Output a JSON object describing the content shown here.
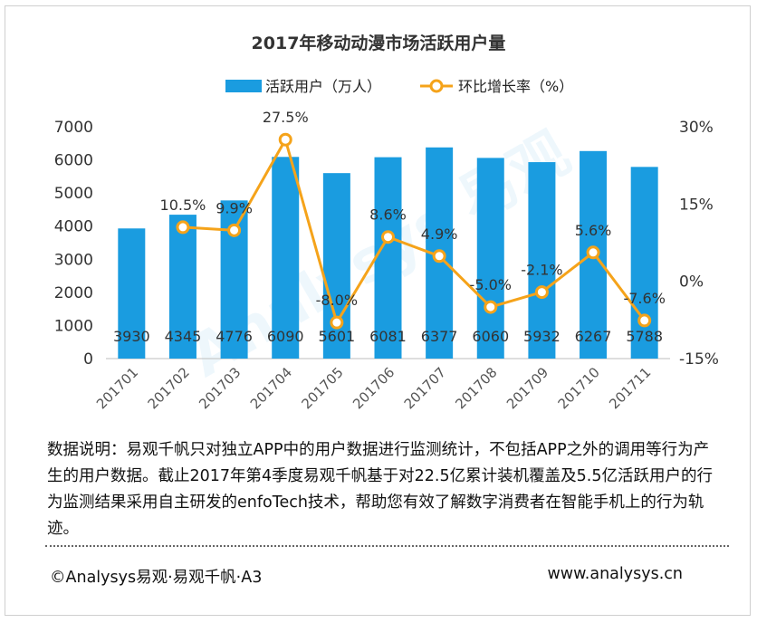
{
  "chart_data": {
    "type": "bar+line",
    "title": "2017年移动动漫市场活跃用户量",
    "categories": [
      "201701",
      "201702",
      "201703",
      "201704",
      "201705",
      "201706",
      "201707",
      "201708",
      "201709",
      "201710",
      "201711"
    ],
    "series": [
      {
        "name": "活跃用户（万人）",
        "type": "bar",
        "axis": "left",
        "color": "#1a9ce0",
        "values": [
          3930,
          4345,
          4776,
          6090,
          5601,
          6081,
          6377,
          6060,
          5932,
          6267,
          5788
        ],
        "labels": [
          "3930",
          "4345",
          "4776",
          "6090",
          "5601",
          "6081",
          "6377",
          "6060",
          "5932",
          "6267",
          "5788"
        ]
      },
      {
        "name": "环比增长率（%）",
        "type": "line",
        "axis": "right",
        "color": "#f5a31a",
        "values": [
          null,
          10.5,
          9.9,
          27.5,
          -8.0,
          8.6,
          4.9,
          -5.0,
          -2.1,
          5.6,
          -7.6
        ],
        "labels": [
          "",
          "10.5%",
          "9.9%",
          "27.5%",
          "-8.0%",
          "8.6%",
          "4.9%",
          "-5.0%",
          "-2.1%",
          "5.6%",
          "-7.6%"
        ]
      }
    ],
    "y_left": {
      "min": 0,
      "max": 7000,
      "ticks": [
        "0",
        "1000",
        "2000",
        "3000",
        "4000",
        "5000",
        "6000",
        "7000"
      ]
    },
    "y_right": {
      "min": -15,
      "max": 30,
      "ticks": [
        "-15%",
        "0%",
        "15%",
        "30%"
      ]
    },
    "legend_position": "top-center"
  },
  "watermark": "Analysys 易观",
  "note": "数据说明：易观千帆只对独立APP中的用户数据进行监测统计，不包括APP之外的调用等行为产生的用户数据。截止2017年第4季度易观千帆基于对22.5亿累计装机覆盖及5.5亿活跃用户的行为监测结果采用自主研发的enfoTech技术，帮助您有效了解数字消费者在智能手机上的行为轨迹。",
  "footer": {
    "copyright": "©Analysys易观·易观千帆·A3",
    "website": "www.analysys.cn"
  }
}
